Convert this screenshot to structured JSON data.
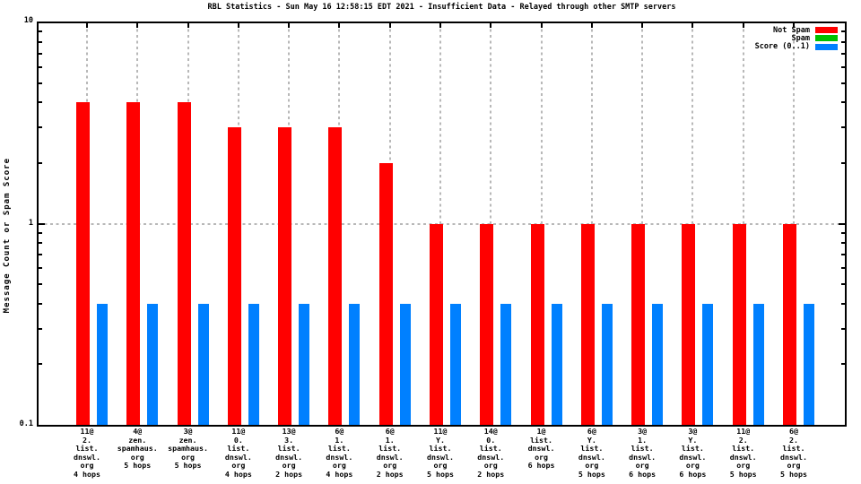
{
  "chart_data": {
    "type": "bar",
    "title": "RBL Statistics - Sun May 16 12:58:15 EDT 2021 - Insufficient Data - Relayed through other SMTP servers",
    "ylabel": "Message Count or Spam Score",
    "xlabel": "",
    "yscale": "log",
    "ylim": [
      0.1,
      10
    ],
    "yticks": [
      {
        "value": 10,
        "label": "10"
      },
      {
        "value": 1,
        "label": "1"
      },
      {
        "value": 0.1,
        "label": "0.1"
      }
    ],
    "grid": true,
    "grid_color": "#b8b8b8",
    "axis_color": "#000000",
    "legend_position": "top-right",
    "categories": [
      [
        "11@",
        "2.",
        "list.",
        "dnswl.",
        "org",
        "4 hops"
      ],
      [
        "4@",
        "zen.",
        "spamhaus.",
        "org",
        "5 hops"
      ],
      [
        "3@",
        "zen.",
        "spamhaus.",
        "org",
        "5 hops"
      ],
      [
        "11@",
        "0.",
        "list.",
        "dnswl.",
        "org",
        "4 hops"
      ],
      [
        "13@",
        "3.",
        "list.",
        "dnswl.",
        "org",
        "2 hops"
      ],
      [
        "6@",
        "1.",
        "list.",
        "dnswl.",
        "org",
        "4 hops"
      ],
      [
        "6@",
        "1.",
        "list.",
        "dnswl.",
        "org",
        "2 hops"
      ],
      [
        "11@",
        "Y.",
        "list.",
        "dnswl.",
        "org",
        "5 hops"
      ],
      [
        "14@",
        "0.",
        "list.",
        "dnswl.",
        "org",
        "2 hops"
      ],
      [
        "1@",
        "list.",
        "dnswl.",
        "org",
        "6 hops"
      ],
      [
        "6@",
        "Y.",
        "list.",
        "dnswl.",
        "org",
        "5 hops"
      ],
      [
        "3@",
        "1.",
        "list.",
        "dnswl.",
        "org",
        "6 hops"
      ],
      [
        "3@",
        "Y.",
        "list.",
        "dnswl.",
        "org",
        "6 hops"
      ],
      [
        "11@",
        "2.",
        "list.",
        "dnswl.",
        "org",
        "5 hops"
      ],
      [
        "6@",
        "2.",
        "list.",
        "dnswl.",
        "org",
        "5 hops"
      ]
    ],
    "series": [
      {
        "name": "Not Spam",
        "color": "#ff0000",
        "values": [
          4,
          4,
          4,
          3,
          3,
          3,
          2,
          1,
          1,
          1,
          1,
          1,
          1,
          1,
          1
        ]
      },
      {
        "name": "Spam",
        "color": "#00c000",
        "values": [
          0,
          0,
          0,
          0,
          0,
          0,
          0,
          0,
          0,
          0,
          0,
          0,
          0,
          0,
          0
        ]
      },
      {
        "name": "Score (0..1)",
        "color": "#0080ff",
        "values": [
          0.4,
          0.4,
          0.4,
          0.4,
          0.4,
          0.4,
          0.4,
          0.4,
          0.4,
          0.4,
          0.4,
          0.4,
          0.4,
          0.4,
          0.4
        ]
      }
    ]
  }
}
